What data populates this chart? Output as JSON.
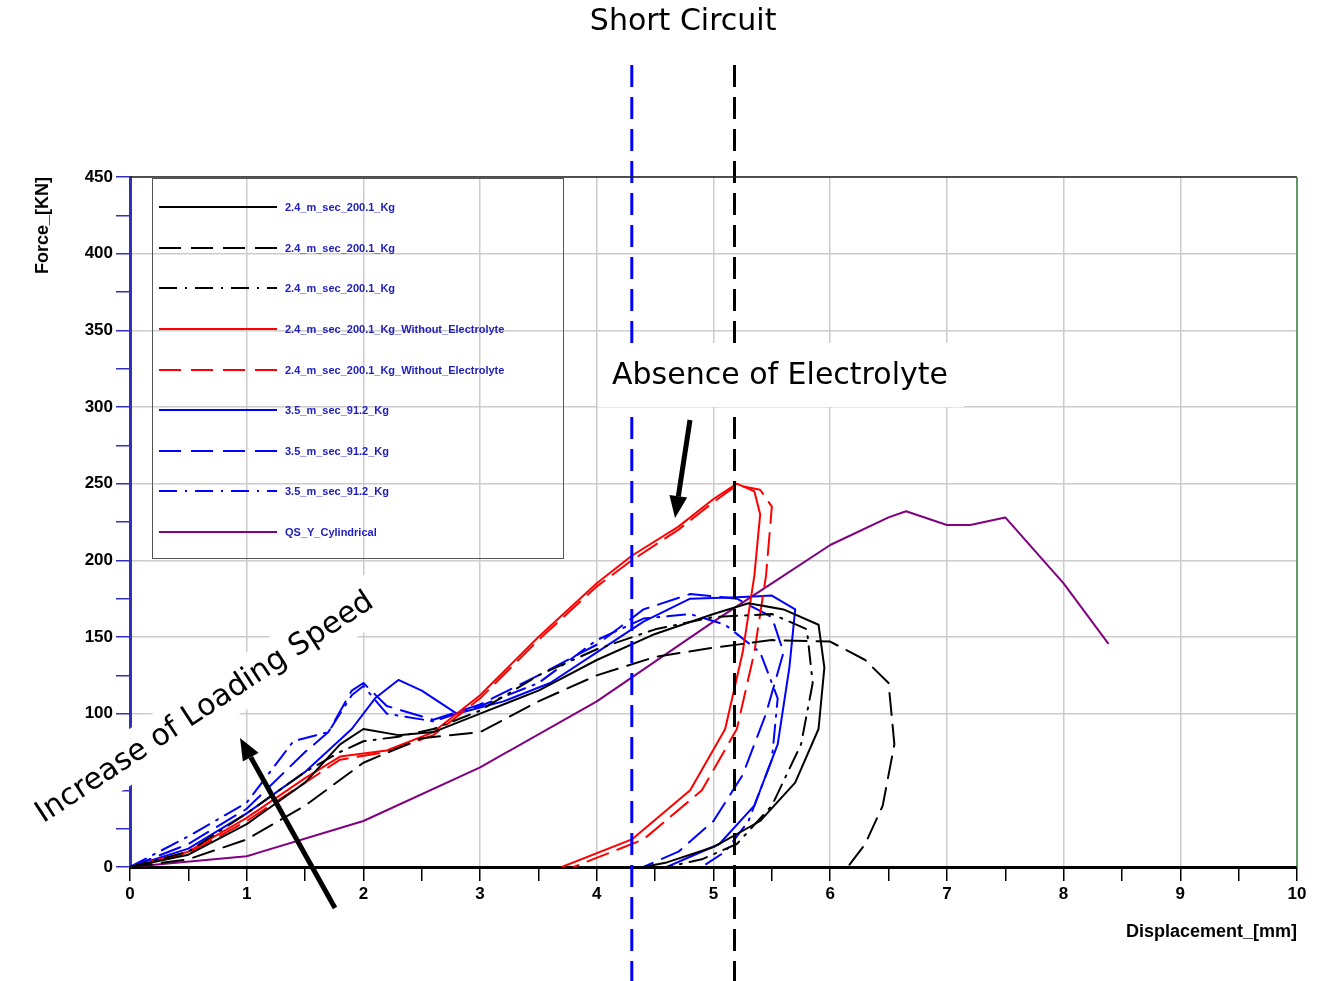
{
  "chart_data": {
    "type": "line",
    "xlabel": "Displacement_[mm]",
    "ylabel": "Force_[KN]",
    "xlim": [
      0,
      10
    ],
    "ylim": [
      0,
      450
    ],
    "xticks": [
      0,
      {
        "value": 0.5,
        "label": null
      },
      1,
      {
        "value": 1.5,
        "label": null
      },
      2,
      {
        "value": 2.5,
        "label": null
      },
      3,
      {
        "value": 3.5,
        "label": null
      },
      4,
      {
        "value": 4.5,
        "label": null
      },
      5,
      {
        "value": 5.5,
        "label": null
      },
      6,
      {
        "value": 6.5,
        "label": null
      },
      7,
      {
        "value": 7.5,
        "label": null
      },
      8,
      {
        "value": 8.5,
        "label": null
      },
      9,
      {
        "value": 9.5,
        "label": null
      },
      10
    ],
    "yticks": [
      0,
      {
        "value": 25,
        "label": null
      },
      {
        "value": 50,
        "label": null
      },
      {
        "value": 75,
        "label": null
      },
      100,
      {
        "value": 125,
        "label": null
      },
      150,
      {
        "value": 175,
        "label": null
      },
      200,
      {
        "value": 225,
        "label": null
      },
      250,
      {
        "value": 275,
        "label": null
      },
      300,
      {
        "value": 325,
        "label": null
      },
      350,
      {
        "value": 375,
        "label": null
      },
      400,
      {
        "value": 425,
        "label": null
      },
      450
    ],
    "grid": true,
    "legend": "top left",
    "marker": "none",
    "series": [
      {
        "name": "2.4_m_sec_200.1_Kg",
        "color": "#000000",
        "line_style": "solid",
        "x": [
          0,
          0.5,
          1,
          1.5,
          1.8,
          2,
          2.3,
          2.6,
          3,
          3.5,
          4,
          4.5,
          5,
          5.3,
          5.6,
          5.9,
          5.95,
          5.9,
          5.7,
          5.4,
          5,
          4.6,
          4.4
        ],
        "values": [
          0,
          8,
          28,
          55,
          80,
          90,
          86,
          88,
          100,
          115,
          135,
          152,
          165,
          172,
          168,
          158,
          130,
          90,
          55,
          30,
          13,
          3,
          0
        ]
      },
      {
        "name": "2.4_m_sec_200.1_Kg",
        "color": "#000000",
        "line_style": "dashed",
        "x": [
          0,
          0.5,
          1,
          1.5,
          2,
          2.5,
          3,
          3.5,
          4,
          4.5,
          5,
          5.5,
          6,
          6.3,
          6.5,
          6.55,
          6.45,
          6.3,
          6.15
        ],
        "values": [
          0,
          5,
          18,
          40,
          68,
          84,
          88,
          108,
          125,
          137,
          143,
          148,
          147,
          135,
          120,
          80,
          40,
          15,
          0
        ]
      },
      {
        "name": "2.4_m_sec_200.1_Kg",
        "color": "#000000",
        "line_style": "dashdot",
        "x": [
          0,
          0.5,
          1,
          1.5,
          1.8,
          2,
          2.3,
          2.6,
          3,
          3.5,
          4,
          4.5,
          5,
          5.5,
          5.8,
          5.85,
          5.75,
          5.5,
          5.2,
          4.9,
          4.6
        ],
        "values": [
          0,
          10,
          35,
          62,
          75,
          82,
          85,
          90,
          102,
          125,
          142,
          155,
          163,
          165,
          155,
          120,
          80,
          40,
          15,
          5,
          0
        ]
      },
      {
        "name": "2.4_m_sec_200.1_Kg_Without_Electrolyte",
        "color": "#ff0000",
        "line_style": "solid",
        "x": [
          0,
          0.5,
          1,
          1.5,
          1.8,
          2.2,
          2.6,
          3,
          3.5,
          4,
          4.3,
          4.7,
          5,
          5.2,
          5.35,
          5.4,
          5.35,
          5.25,
          5.1,
          4.8,
          4.3,
          3.7
        ],
        "values": [
          0,
          10,
          32,
          58,
          72,
          76,
          88,
          112,
          150,
          185,
          203,
          222,
          240,
          250,
          245,
          230,
          190,
          140,
          90,
          50,
          18,
          0
        ]
      },
      {
        "name": "2.4_m_sec_200.1_Kg_Without_Electrolyte",
        "color": "#ff0000",
        "line_style": "dashed",
        "x": [
          0,
          0.5,
          1,
          1.5,
          1.8,
          2.2,
          2.6,
          3,
          3.5,
          4,
          4.3,
          4.7,
          5,
          5.2,
          5.4,
          5.5,
          5.45,
          5.35,
          5.2,
          4.9,
          4.4,
          3.8
        ],
        "values": [
          0,
          9,
          30,
          55,
          70,
          75,
          86,
          110,
          148,
          183,
          200,
          220,
          238,
          249,
          246,
          235,
          190,
          140,
          90,
          50,
          18,
          0
        ]
      },
      {
        "name": "3.5_m_sec_91.2_Kg",
        "color": "#0000ff",
        "line_style": "solid",
        "x": [
          0,
          0.5,
          1,
          1.5,
          1.9,
          2.1,
          2.3,
          2.5,
          2.8,
          3.2,
          3.6,
          4,
          4.4,
          4.8,
          5.2,
          5.5,
          5.7,
          5.65,
          5.55,
          5.35,
          5.05,
          4.6
        ],
        "values": [
          0,
          12,
          35,
          62,
          90,
          110,
          122,
          115,
          100,
          108,
          120,
          140,
          160,
          175,
          176,
          177,
          168,
          130,
          80,
          40,
          15,
          0
        ]
      },
      {
        "name": "3.5_m_sec_91.2_Kg",
        "color": "#0000ff",
        "line_style": "dashed",
        "x": [
          0,
          0.5,
          1,
          1.5,
          1.7,
          1.9,
          2,
          2.2,
          2.6,
          3,
          3.5,
          4,
          4.4,
          4.8,
          5.2,
          5.5,
          5.6,
          5.45,
          5.25,
          5,
          4.7,
          4.4
        ],
        "values": [
          0,
          15,
          38,
          75,
          88,
          115,
          120,
          105,
          96,
          106,
          125,
          145,
          168,
          178,
          175,
          163,
          140,
          100,
          60,
          30,
          10,
          0
        ]
      },
      {
        "name": "3.5_m_sec_91.2_Kg",
        "color": "#0000ff",
        "line_style": "dashdot",
        "x": [
          0,
          0.5,
          1,
          1.4,
          1.7,
          1.9,
          2,
          2.2,
          2.6,
          3,
          3.5,
          4,
          4.4,
          4.8,
          5.1,
          5.4,
          5.55,
          5.5,
          5.3,
          5.1,
          4.9
        ],
        "values": [
          0,
          20,
          42,
          82,
          88,
          112,
          118,
          100,
          95,
          105,
          120,
          148,
          162,
          165,
          158,
          140,
          110,
          70,
          30,
          10,
          0
        ]
      },
      {
        "name": "QS_Y_Cylindrical",
        "color": "#800080",
        "line_style": "solid",
        "x": [
          0,
          1,
          2,
          3,
          4,
          5,
          5.5,
          6,
          6.5,
          6.65,
          7,
          7.2,
          7.5,
          8,
          8.38
        ],
        "values": [
          0,
          7,
          30,
          65,
          108,
          160,
          185,
          210,
          228,
          232,
          223,
          223,
          228,
          185,
          146
        ]
      }
    ],
    "ref_lines": [
      {
        "axis": "x",
        "value": 4.3,
        "color": "#0000ff",
        "line_style": "dashed"
      },
      {
        "axis": "x",
        "value": 5.18,
        "color": "#000000",
        "line_style": "dashed"
      }
    ],
    "annotations": [
      "Short Circuit",
      "Absence of Electrolyte",
      "Increase of Loading Speed"
    ]
  }
}
